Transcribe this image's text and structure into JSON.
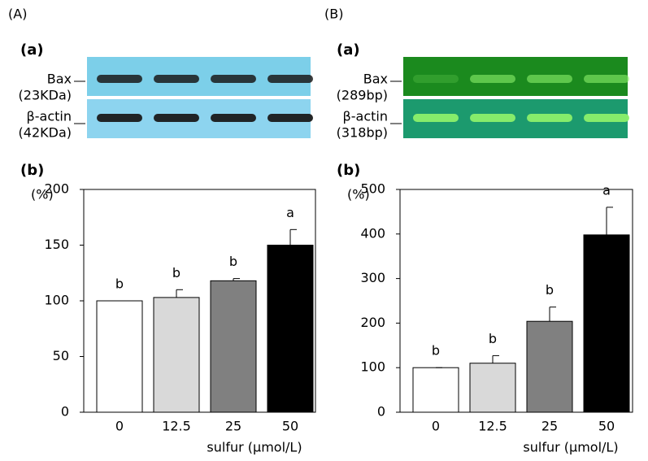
{
  "chart_data": [
    {
      "type": "bar",
      "panel": "(A)",
      "blot_label": "(a)",
      "chart_label": "(b)",
      "blots": [
        {
          "name": "Bax",
          "size": "(23KDa)"
        },
        {
          "name": "β-actin",
          "size": "(42KDa)"
        }
      ],
      "y_label": "(%)",
      "x_label": "sulfur (μmol/L)",
      "categories": [
        "0",
        "12.5",
        "25",
        "50"
      ],
      "values": [
        100,
        103,
        118,
        150
      ],
      "errors": [
        0,
        7,
        2,
        14
      ],
      "letters": [
        "b",
        "b",
        "b",
        "a"
      ],
      "colors": [
        "#ffffff",
        "#d9d9d9",
        "#808080",
        "#000000"
      ],
      "ylim": [
        0,
        200
      ],
      "yticks": [
        0,
        50,
        100,
        150,
        200
      ]
    },
    {
      "type": "bar",
      "panel": "(B)",
      "blot_label": "(a)",
      "chart_label": "(b)",
      "blots": [
        {
          "name": "Bax",
          "size": "(289bp)"
        },
        {
          "name": "β-actin",
          "size": "(318bp)"
        }
      ],
      "y_label": "(%)",
      "x_label": "sulfur (μmol/L)",
      "categories": [
        "0",
        "12.5",
        "25",
        "50"
      ],
      "values": [
        100,
        110,
        204,
        398
      ],
      "errors": [
        0,
        17,
        32,
        62
      ],
      "letters": [
        "b",
        "b",
        "b",
        "a"
      ],
      "colors": [
        "#ffffff",
        "#d9d9d9",
        "#808080",
        "#000000"
      ],
      "ylim": [
        0,
        500
      ],
      "yticks": [
        0,
        100,
        200,
        300,
        400,
        500
      ]
    }
  ]
}
